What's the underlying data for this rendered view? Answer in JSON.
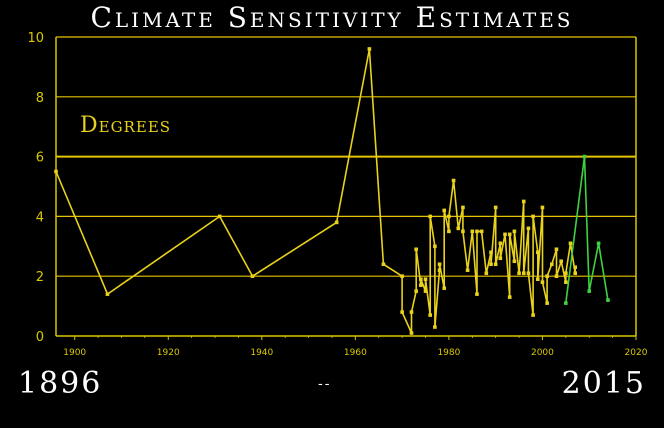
{
  "chart_data": {
    "type": "line",
    "title": "Climate Sensitivity Estimates",
    "annotation": "Degrees",
    "xlim": [
      1896,
      2020
    ],
    "ylim": [
      0,
      10
    ],
    "x_ticks": [
      "1900",
      "1920",
      "1940",
      "1960",
      "1980",
      "2000",
      "2020"
    ],
    "y_ticks": [
      "0",
      "2",
      "4",
      "6",
      "8",
      "10"
    ],
    "grid": "horizontal",
    "colors": {
      "series": "#e8d21c",
      "recent": "#3fd23f",
      "grid": "#e6c400",
      "axis": "#d8c800"
    },
    "series": [
      {
        "color": "#e8d21c",
        "x": [
          1896,
          1907,
          1931,
          1938,
          1956,
          1963,
          1966,
          1970,
          1970,
          1972,
          1972,
          1973,
          1973,
          1974,
          1974,
          1975,
          1975,
          1976,
          1976,
          1977,
          1977,
          1978,
          1978,
          1979,
          1979,
          1980,
          1980,
          1981,
          1982,
          1983,
          1983,
          1984,
          1985,
          1986,
          1986,
          1987,
          1988,
          1989,
          1989,
          1990,
          1990,
          1991,
          1991,
          1992,
          1993,
          1993,
          1994,
          1994,
          1995,
          1996,
          1996,
          1997,
          1997,
          1998,
          1998,
          1999,
          1999,
          2000,
          2000,
          2001,
          2001,
          2002,
          2003,
          2003,
          2004,
          2005,
          2005,
          2006,
          2007,
          2007
        ],
        "y": [
          5.5,
          1.4,
          4.0,
          2.0,
          3.8,
          9.6,
          2.4,
          2.0,
          0.8,
          0.1,
          0.8,
          1.5,
          2.9,
          1.7,
          1.9,
          1.5,
          1.9,
          0.7,
          4.0,
          3.0,
          0.3,
          2.2,
          2.4,
          1.6,
          4.2,
          3.5,
          4.0,
          5.2,
          3.6,
          4.3,
          3.5,
          2.2,
          3.5,
          1.4,
          3.5,
          3.5,
          2.1,
          2.8,
          2.4,
          4.3,
          2.4,
          3.1,
          2.6,
          3.4,
          1.3,
          3.4,
          2.5,
          3.5,
          2.1,
          4.5,
          2.1,
          3.6,
          2.1,
          0.7,
          4.0,
          2.8,
          1.9,
          4.3,
          1.8,
          1.1,
          2.0,
          2.4,
          2.9,
          2.0,
          2.5,
          1.8,
          2.1,
          3.1,
          2.1,
          2.3
        ]
      },
      {
        "color": "#3fd23f",
        "x": [
          2005,
          2009,
          2010,
          2012,
          2014
        ],
        "y": [
          1.1,
          6.0,
          1.5,
          3.1,
          1.2
        ]
      }
    ]
  },
  "footer": {
    "start_year": "1896",
    "separator": "--",
    "end_year": "2015"
  }
}
